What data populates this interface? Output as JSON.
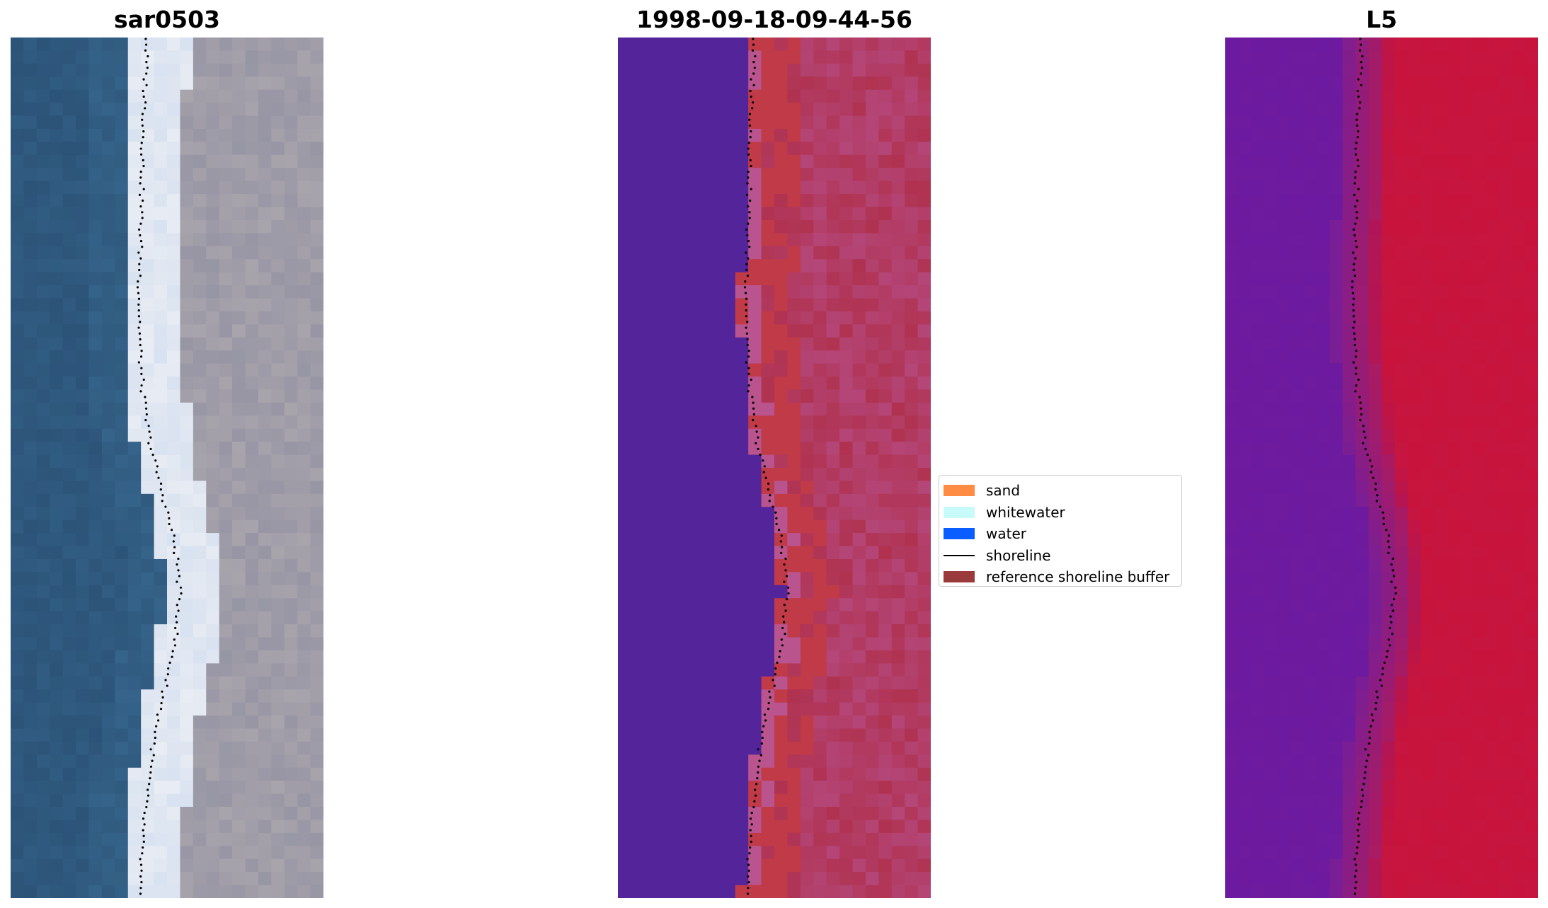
{
  "panels": [
    {
      "title": "sar0503"
    },
    {
      "title": "1998-09-18-09-44-56"
    },
    {
      "title": "L5"
    }
  ],
  "legend": {
    "items": [
      {
        "label": "sand",
        "color": "#ff8c42",
        "kind": "patch"
      },
      {
        "label": "whitewater",
        "color": "#c8fafa",
        "kind": "patch"
      },
      {
        "label": "water",
        "color": "#0a5dff",
        "kind": "patch"
      },
      {
        "label": "shoreline",
        "color": "#000000",
        "kind": "line"
      },
      {
        "label": "reference shoreline buffer",
        "color": "#9b3a3a",
        "kind": "patch"
      }
    ]
  },
  "colors": {
    "rgb_water": "#2c5378",
    "rgb_surf": "#e8ecf4",
    "rgb_sand": "#a8a4ac",
    "class_water": "#54249a",
    "class_sand": "#b03250",
    "class_mix": "#b85aa0",
    "class_buffer": "#c03a48",
    "ndwi_water": "#6c1aa0",
    "ndwi_sand": "#c8143c",
    "shoreline": "#000000"
  }
}
